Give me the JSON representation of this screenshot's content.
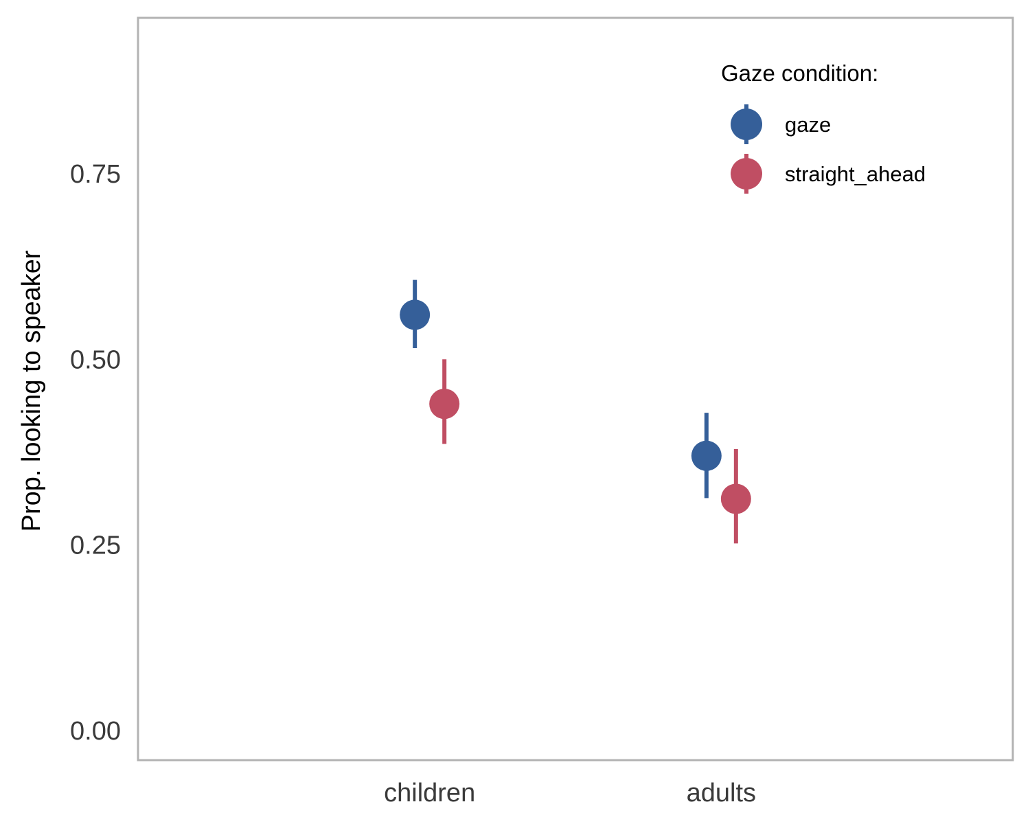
{
  "chart_data": {
    "type": "scatter",
    "subtype": "pointrange",
    "title": "",
    "xlabel": "",
    "ylabel": "Prop. looking to speaker",
    "categories": [
      "children",
      "adults"
    ],
    "ylim": [
      -0.04,
      0.96
    ],
    "y_ticks": [
      0.0,
      0.25,
      0.5,
      0.75
    ],
    "y_tick_labels": [
      "0.00",
      "0.25",
      "0.50",
      "0.75"
    ],
    "grid": false,
    "legend": {
      "title": "Gaze condition:",
      "position": "top-right"
    },
    "series": [
      {
        "name": "gaze",
        "color": "#355f99",
        "values": [
          0.56,
          0.37
        ],
        "lower": [
          0.515,
          0.313
        ],
        "upper": [
          0.607,
          0.428
        ]
      },
      {
        "name": "straight_ahead",
        "color": "#c04e63",
        "values": [
          0.44,
          0.312
        ],
        "lower": [
          0.386,
          0.252
        ],
        "upper": [
          0.5,
          0.379
        ]
      }
    ],
    "panel_border_color": "#b3b3b3"
  }
}
